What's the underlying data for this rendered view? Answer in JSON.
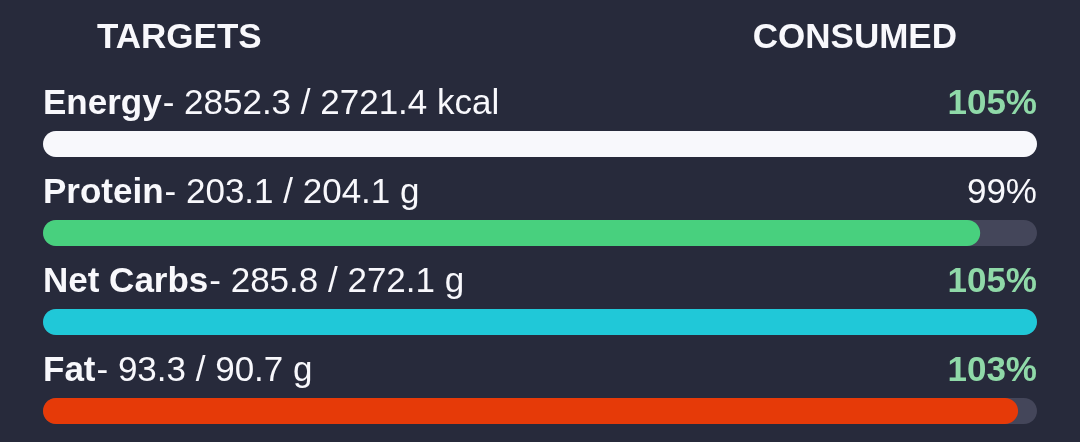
{
  "chart_data": {
    "type": "bar",
    "orientation": "horizontal",
    "title": "TARGETS",
    "categories": [
      "Energy",
      "Protein",
      "Net Carbs",
      "Fat"
    ],
    "values": [
      105,
      99,
      105,
      103
    ],
    "colors": [
      "#f8f8fc",
      "#48d07e",
      "#20c8d8",
      "#e63a08"
    ],
    "value_labels": [
      "105%",
      "99%",
      "105%",
      "103%"
    ],
    "annotations": [
      "CONSUMED",
      "- 2852.3 / 2721.4 kcal",
      "- 203.1 / 204.1 g",
      "- 285.8 / 272.1 g",
      "- 93.3 / 90.7 g"
    ]
  }
}
